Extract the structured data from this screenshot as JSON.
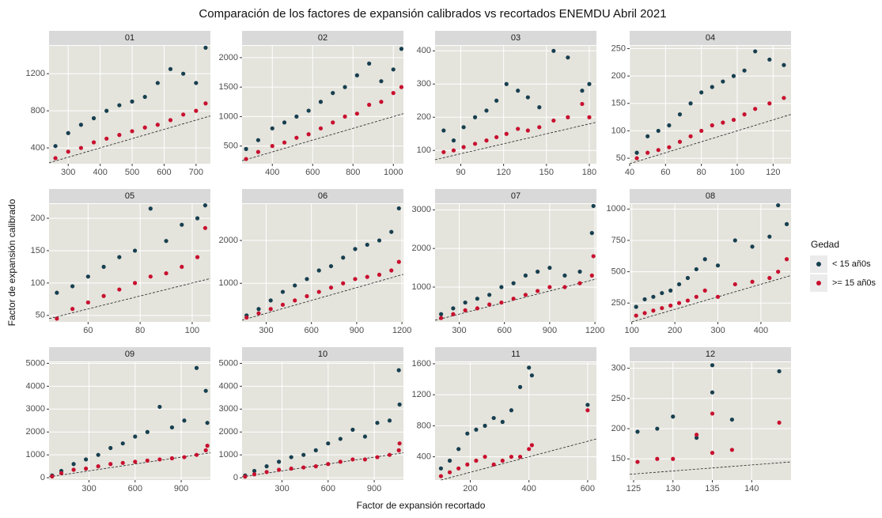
{
  "chart_data": {
    "type": "scatter",
    "title": "Comparación  de los factores de expansión calibrados vs recortados ENEMDU Abril 2021",
    "x_label": "Factor de expansión recortado",
    "y_label": "Factor de expansión calibrado",
    "grid": true,
    "identity_line": true,
    "legend": {
      "title": "Gedad",
      "position": "right",
      "series": [
        {
          "name": "< 15 añ0s",
          "color": "#173f4f"
        },
        {
          "name": ">= 15 añ0s",
          "color": "#c8102e"
        }
      ]
    },
    "panels": [
      {
        "label": "01",
        "xlim": [
          240,
          745
        ],
        "ylim": [
          230,
          1500
        ],
        "xticks": [
          300,
          400,
          500,
          600,
          700
        ],
        "yticks": [
          400,
          800,
          1200
        ],
        "series": [
          {
            "x": [
              260,
              300,
              340,
              380,
              420,
              460,
              500,
              540,
              580,
              620,
              660,
              700,
              730
            ],
            "y": [
              420,
              560,
              650,
              720,
              800,
              860,
              900,
              950,
              1100,
              1250,
              1200,
              1100,
              1480
            ]
          },
          {
            "x": [
              260,
              300,
              340,
              380,
              420,
              460,
              500,
              540,
              580,
              620,
              660,
              700,
              730
            ],
            "y": [
              290,
              360,
              400,
              460,
              500,
              540,
              580,
              620,
              650,
              700,
              760,
              800,
              880
            ]
          }
        ]
      },
      {
        "label": "02",
        "xlim": [
          250,
          1050
        ],
        "ylim": [
          200,
          2200
        ],
        "xticks": [
          400,
          600,
          800,
          1000
        ],
        "yticks": [
          500,
          1000,
          1500,
          2000
        ],
        "series": [
          {
            "x": [
              270,
              330,
              400,
              460,
              520,
              580,
              640,
              700,
              760,
              820,
              880,
              940,
              1000,
              1040
            ],
            "y": [
              450,
              600,
              800,
              900,
              1000,
              1100,
              1250,
              1400,
              1500,
              1700,
              1900,
              1600,
              1800,
              2150
            ]
          },
          {
            "x": [
              270,
              330,
              400,
              460,
              520,
              580,
              640,
              700,
              760,
              820,
              880,
              940,
              1000,
              1040
            ],
            "y": [
              280,
              400,
              500,
              560,
              640,
              700,
              800,
              900,
              1000,
              1050,
              1200,
              1250,
              1400,
              1500
            ]
          }
        ]
      },
      {
        "label": "03",
        "xlim": [
          72,
          185
        ],
        "ylim": [
          60,
          415
        ],
        "xticks": [
          90,
          120,
          150,
          180
        ],
        "yticks": [
          100,
          200,
          300,
          400
        ],
        "series": [
          {
            "x": [
              78,
              85,
              92,
              100,
              108,
              115,
              122,
              130,
              137,
              145,
              155,
              165,
              175,
              180
            ],
            "y": [
              160,
              130,
              170,
              200,
              220,
              250,
              300,
              280,
              260,
              230,
              400,
              380,
              280,
              300
            ]
          },
          {
            "x": [
              78,
              85,
              92,
              100,
              108,
              115,
              122,
              130,
              137,
              145,
              155,
              165,
              175,
              180
            ],
            "y": [
              95,
              100,
              110,
              120,
              130,
              140,
              150,
              165,
              160,
              170,
              190,
              200,
              240,
              200
            ]
          }
        ]
      },
      {
        "label": "04",
        "xlim": [
          40,
          130
        ],
        "ylim": [
          40,
          255
        ],
        "xticks": [
          40,
          60,
          80,
          100,
          120
        ],
        "yticks": [
          50,
          100,
          150,
          200,
          250
        ],
        "series": [
          {
            "x": [
              44,
              50,
              56,
              62,
              68,
              74,
              80,
              86,
              92,
              98,
              104,
              110,
              118,
              126
            ],
            "y": [
              60,
              90,
              100,
              110,
              130,
              150,
              170,
              180,
              190,
              200,
              210,
              245,
              230,
              220
            ]
          },
          {
            "x": [
              44,
              50,
              56,
              62,
              68,
              74,
              80,
              86,
              92,
              98,
              104,
              110,
              118,
              126
            ],
            "y": [
              50,
              60,
              65,
              70,
              80,
              90,
              100,
              110,
              115,
              120,
              130,
              140,
              150,
              160
            ]
          }
        ]
      },
      {
        "label": "05",
        "xlim": [
          45,
          107
        ],
        "ylim": [
          40,
          222
        ],
        "xticks": [
          60,
          80,
          100
        ],
        "yticks": [
          50,
          100,
          150,
          200
        ],
        "series": [
          {
            "x": [
              48,
              54,
              60,
              66,
              72,
              78,
              84,
              90,
              96,
              102,
              105
            ],
            "y": [
              85,
              95,
              110,
              125,
              140,
              150,
              215,
              165,
              190,
              200,
              220
            ]
          },
          {
            "x": [
              48,
              54,
              60,
              66,
              72,
              78,
              84,
              90,
              96,
              102,
              105
            ],
            "y": [
              45,
              60,
              70,
              80,
              90,
              100,
              110,
              115,
              125,
              140,
              185
            ]
          }
        ]
      },
      {
        "label": "06",
        "xlim": [
          140,
          1210
        ],
        "ylim": [
          100,
          2850
        ],
        "xticks": [
          300,
          600,
          900,
          1200
        ],
        "yticks": [
          1000,
          2000
        ],
        "series": [
          {
            "x": [
              170,
              250,
              330,
              410,
              490,
              570,
              650,
              730,
              810,
              890,
              970,
              1050,
              1130,
              1180
            ],
            "y": [
              250,
              400,
              600,
              800,
              950,
              1100,
              1300,
              1400,
              1600,
              1800,
              1900,
              2000,
              2200,
              2750
            ]
          },
          {
            "x": [
              170,
              250,
              330,
              410,
              490,
              570,
              650,
              730,
              810,
              890,
              970,
              1050,
              1130,
              1180
            ],
            "y": [
              200,
              300,
              400,
              500,
              600,
              700,
              800,
              900,
              1000,
              1100,
              1150,
              1200,
              1300,
              1500
            ]
          }
        ]
      },
      {
        "label": "07",
        "xlim": [
          140,
          1210
        ],
        "ylim": [
          100,
          3150
        ],
        "xticks": [
          300,
          600,
          900,
          1200
        ],
        "yticks": [
          1000,
          2000,
          3000
        ],
        "series": [
          {
            "x": [
              180,
              260,
              340,
              420,
              500,
              580,
              660,
              740,
              820,
              900,
              1000,
              1100,
              1180,
              1190
            ],
            "y": [
              300,
              450,
              600,
              700,
              800,
              1000,
              1100,
              1300,
              1400,
              1500,
              1300,
              1400,
              2400,
              3100
            ]
          },
          {
            "x": [
              180,
              260,
              340,
              420,
              500,
              580,
              660,
              740,
              820,
              900,
              1000,
              1100,
              1180,
              1190
            ],
            "y": [
              200,
              300,
              400,
              450,
              550,
              600,
              700,
              800,
              900,
              1000,
              1000,
              1100,
              1300,
              1800
            ]
          }
        ]
      },
      {
        "label": "08",
        "xlim": [
          95,
          470
        ],
        "ylim": [
          100,
          1040
        ],
        "xticks": [
          100,
          200,
          300,
          400
        ],
        "yticks": [
          250,
          500,
          750,
          1000
        ],
        "series": [
          {
            "x": [
              110,
              130,
              150,
              170,
              190,
              210,
              230,
              250,
              270,
              300,
              340,
              380,
              420,
              440,
              460
            ],
            "y": [
              220,
              280,
              300,
              330,
              350,
              400,
              450,
              520,
              600,
              550,
              750,
              700,
              780,
              1030,
              880
            ]
          },
          {
            "x": [
              110,
              130,
              150,
              170,
              190,
              210,
              230,
              250,
              270,
              300,
              340,
              380,
              420,
              440,
              460
            ],
            "y": [
              150,
              170,
              190,
              210,
              230,
              250,
              270,
              300,
              350,
              300,
              400,
              420,
              450,
              500,
              600
            ]
          }
        ]
      },
      {
        "label": "09",
        "xlim": [
          40,
          1090
        ],
        "ylim": [
          -100,
          5050
        ],
        "xticks": [
          300,
          600,
          900
        ],
        "yticks": [
          0,
          1000,
          2000,
          3000,
          4000,
          5000
        ],
        "series": [
          {
            "x": [
              60,
              120,
              200,
              280,
              360,
              440,
              520,
              600,
              680,
              760,
              840,
              920,
              1000,
              1060,
              1070
            ],
            "y": [
              100,
              300,
              600,
              800,
              1000,
              1300,
              1500,
              1800,
              2000,
              3100,
              2200,
              2500,
              4800,
              3800,
              2400
            ]
          },
          {
            "x": [
              60,
              120,
              200,
              280,
              360,
              440,
              520,
              600,
              680,
              760,
              840,
              920,
              1000,
              1060,
              1070
            ],
            "y": [
              60,
              200,
              350,
              400,
              500,
              600,
              650,
              700,
              750,
              800,
              850,
              900,
              1000,
              1200,
              1400
            ]
          }
        ]
      },
      {
        "label": "10",
        "xlim": [
          40,
          1090
        ],
        "ylim": [
          -100,
          5050
        ],
        "xticks": [
          300,
          600,
          900
        ],
        "yticks": [
          0,
          1000,
          2000,
          3000,
          4000,
          5000
        ],
        "series": [
          {
            "x": [
              60,
              120,
              200,
              280,
              360,
              440,
              520,
              600,
              680,
              760,
              840,
              920,
              1000,
              1060,
              1065
            ],
            "y": [
              100,
              300,
              500,
              700,
              900,
              1000,
              1200,
              1500,
              1700,
              2100,
              1800,
              2400,
              2500,
              4700,
              3200
            ]
          },
          {
            "x": [
              60,
              120,
              200,
              280,
              360,
              440,
              520,
              600,
              680,
              760,
              840,
              920,
              1000,
              1060,
              1065
            ],
            "y": [
              50,
              150,
              250,
              350,
              400,
              450,
              500,
              600,
              700,
              800,
              800,
              900,
              1000,
              1200,
              1500
            ]
          }
        ]
      },
      {
        "label": "11",
        "xlim": [
          80,
          630
        ],
        "ylim": [
          100,
          1620
        ],
        "xticks": [
          200,
          400,
          600
        ],
        "yticks": [
          400,
          800,
          1200,
          1600
        ],
        "series": [
          {
            "x": [
              100,
              130,
              160,
              190,
              220,
              250,
              280,
              310,
              340,
              370,
              400,
              410,
              600
            ],
            "y": [
              250,
              350,
              500,
              700,
              750,
              800,
              900,
              850,
              1000,
              1300,
              1550,
              1450,
              1070
            ]
          },
          {
            "x": [
              100,
              130,
              160,
              190,
              220,
              250,
              280,
              310,
              340,
              370,
              400,
              410,
              600
            ],
            "y": [
              150,
              200,
              250,
              300,
              350,
              400,
              300,
              350,
              400,
              400,
              500,
              550,
              1000
            ]
          }
        ]
      },
      {
        "label": "12",
        "xlim": [
          124.5,
          145
        ],
        "ylim": [
          115,
          310
        ],
        "xticks": [
          125,
          130,
          135,
          140
        ],
        "yticks": [
          150,
          200,
          250,
          300
        ],
        "series": [
          {
            "x": [
              125.5,
              128,
              130,
              133,
              135,
              135,
              137.5,
              143.5
            ],
            "y": [
              195,
              200,
              220,
              185,
              305,
              260,
              215,
              295
            ]
          },
          {
            "x": [
              125.5,
              128,
              130,
              133,
              135,
              135,
              137.5,
              143.5
            ],
            "y": [
              145,
              150,
              150,
              190,
              225,
              160,
              165,
              210
            ]
          }
        ]
      }
    ]
  }
}
